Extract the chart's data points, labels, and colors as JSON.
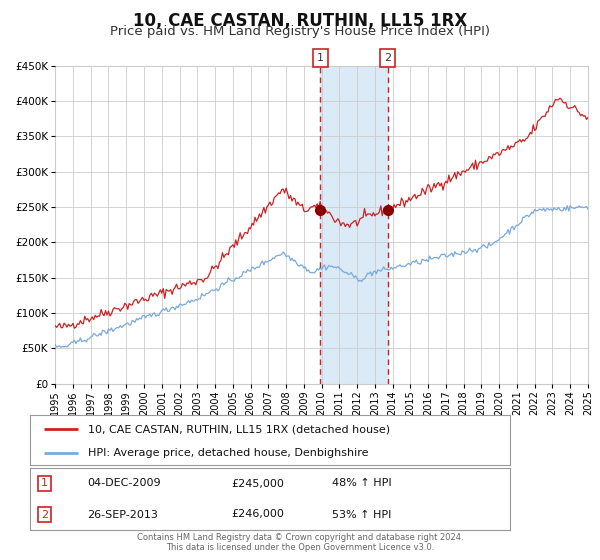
{
  "title": "10, CAE CASTAN, RUTHIN, LL15 1RX",
  "subtitle": "Price paid vs. HM Land Registry's House Price Index (HPI)",
  "title_fontsize": 12,
  "subtitle_fontsize": 9.5,
  "red_label": "10, CAE CASTAN, RUTHIN, LL15 1RX (detached house)",
  "blue_label": "HPI: Average price, detached house, Denbighshire",
  "sale1_date": "04-DEC-2009",
  "sale1_price": "£245,000",
  "sale1_hpi": "48% ↑ HPI",
  "sale1_x": 2009.92,
  "sale1_y": 245000,
  "sale2_date": "26-SEP-2013",
  "sale2_price": "£246,000",
  "sale2_hpi": "53% ↑ HPI",
  "sale2_x": 2013.73,
  "sale2_y": 246000,
  "vline1_x": 2009.92,
  "vline2_x": 2013.73,
  "shade_x1": 2009.92,
  "shade_x2": 2013.73,
  "ylim": [
    0,
    450000
  ],
  "xlim": [
    1995,
    2025
  ],
  "yticks": [
    0,
    50000,
    100000,
    150000,
    200000,
    250000,
    300000,
    350000,
    400000,
    450000
  ],
  "ytick_labels": [
    "£0",
    "£50K",
    "£100K",
    "£150K",
    "£200K",
    "£250K",
    "£300K",
    "£350K",
    "£400K",
    "£450K"
  ],
  "xticks": [
    1995,
    1996,
    1997,
    1998,
    1999,
    2000,
    2001,
    2002,
    2003,
    2004,
    2005,
    2006,
    2007,
    2008,
    2009,
    2010,
    2011,
    2012,
    2013,
    2014,
    2015,
    2016,
    2017,
    2018,
    2019,
    2020,
    2021,
    2022,
    2023,
    2024,
    2025
  ],
  "grid_color": "#cccccc",
  "shade_color": "#daeaf7",
  "red_color": "#cc2222",
  "blue_color": "#7aaadd",
  "marker_color": "#880000",
  "bg_color": "#ffffff",
  "footer_line1": "Contains HM Land Registry data © Crown copyright and database right 2024.",
  "footer_line2": "This data is licensed under the Open Government Licence v3.0."
}
